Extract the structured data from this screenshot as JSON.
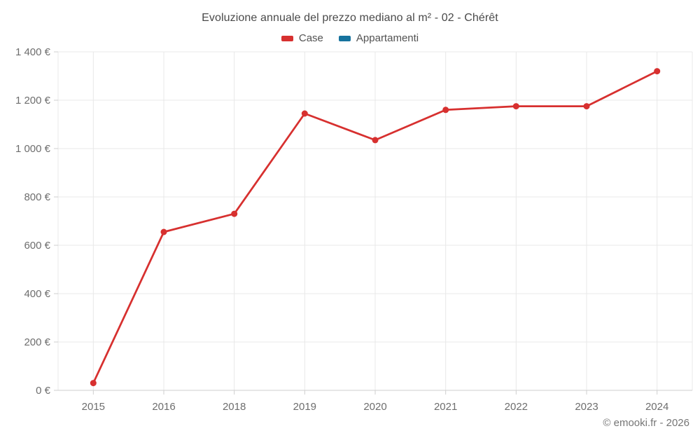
{
  "chart": {
    "title": "Evoluzione annuale del prezzo mediano al m² - 02 - Chérêt",
    "copyright": "© emooki.fr - 2026"
  },
  "legend": {
    "items": [
      {
        "label": "Case",
        "color": "#d7302f"
      },
      {
        "label": "Appartamenti",
        "color": "#16739e"
      }
    ]
  },
  "chart_data": {
    "type": "line",
    "title": "Evoluzione annuale del prezzo mediano al m² - 02 - Chérêt",
    "categories": [
      "2015",
      "2016",
      "2018",
      "2019",
      "2020",
      "2021",
      "2022",
      "2023",
      "2024"
    ],
    "series": [
      {
        "name": "Case",
        "color": "#d7302f",
        "values": [
          30,
          655,
          730,
          1145,
          1035,
          1160,
          1175,
          1175,
          1320
        ]
      },
      {
        "name": "Appartamenti",
        "color": "#16739e",
        "values": []
      }
    ],
    "xlabel": "",
    "ylabel": "",
    "ylim": [
      0,
      1400
    ],
    "yticks": [
      0,
      200,
      400,
      600,
      800,
      1000,
      1200,
      1400
    ],
    "ytick_labels": [
      "0 €",
      "200 €",
      "400 €",
      "600 €",
      "800 €",
      "1 000 €",
      "1 200 €",
      "1 400 €"
    ],
    "grid": true,
    "legend_position": "top",
    "marker_radius": 4.5,
    "line_width": 2.75,
    "colors": {
      "gridline": "#e8e8e8",
      "axis": "#cfcfcf",
      "tick_label": "#6e6e6e"
    }
  }
}
